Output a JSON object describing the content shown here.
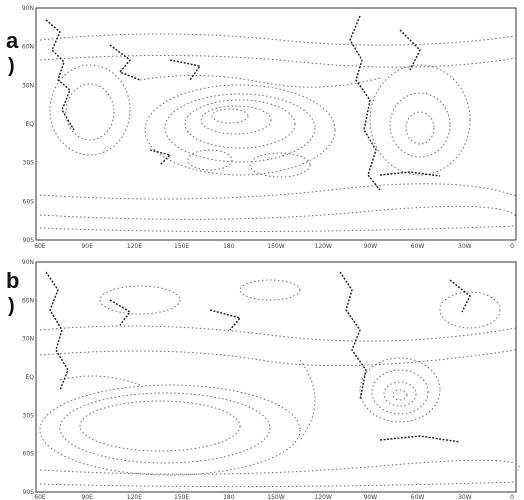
{
  "panels": [
    {
      "letter": "a",
      "paren": ")",
      "lat_labels": [
        "90S",
        "60S",
        "30S",
        "EQ",
        "30N",
        "60N",
        "90N"
      ],
      "lon_labels": [
        "60E",
        "90E",
        "120E",
        "150E",
        "180",
        "150W",
        "120W",
        "90W",
        "60W",
        "30W",
        "0"
      ]
    },
    {
      "letter": "b",
      "paren": ")",
      "lat_labels": [
        "90S",
        "60S",
        "30S",
        "EQ",
        "30N",
        "60N",
        "90N"
      ],
      "lon_labels": [
        "60E",
        "90E",
        "120E",
        "150E",
        "180",
        "150W",
        "120W",
        "90W",
        "60W",
        "30W",
        "0"
      ]
    }
  ],
  "colors": {
    "contour": "#6a6a6a",
    "frame": "#333333",
    "coast": "#1a1a1a",
    "label": "#444444"
  }
}
